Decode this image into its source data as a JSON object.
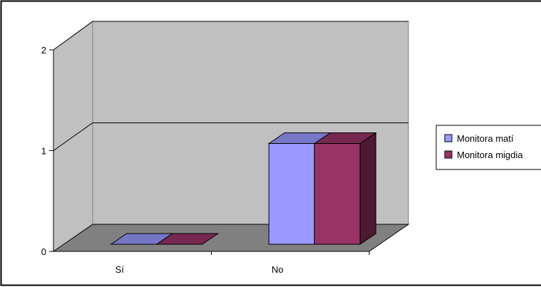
{
  "chart_data": {
    "type": "bar",
    "categories": [
      "Sí",
      "No"
    ],
    "series": [
      {
        "name": "Monitora matí",
        "values": [
          0,
          1
        ],
        "color": "#9999ff"
      },
      {
        "name": "Monitora migdia",
        "values": [
          0,
          1
        ],
        "color": "#993366"
      }
    ],
    "title": "",
    "xlabel": "",
    "ylabel": "",
    "ylim": [
      0,
      2
    ],
    "yticks": [
      "0",
      "1",
      "2"
    ],
    "grid": true,
    "legend": "right",
    "colors": {
      "wall": "#c0c0c0",
      "floor": "#808080",
      "gridline": "#000000"
    }
  }
}
